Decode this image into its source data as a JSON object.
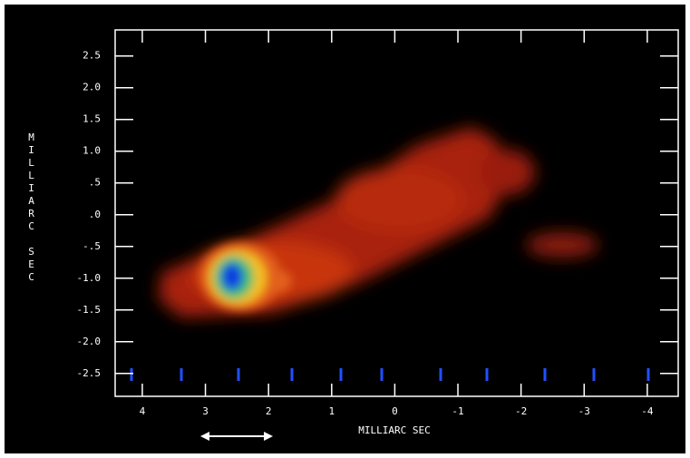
{
  "chart_data": {
    "type": "image",
    "x_label": "MILLIARC SEC",
    "y_label": "MILLIARC SEC",
    "xlim": [
      4.43,
      -4.49
    ],
    "ylim": [
      -2.86,
      2.91
    ],
    "xticks": [
      4,
      3,
      2,
      1,
      0,
      -1,
      -2,
      -3,
      -4
    ],
    "yticks": [
      {
        "value": 2.5,
        "label": "2.5"
      },
      {
        "value": 2,
        "label": "2.0"
      },
      {
        "value": 1.5,
        "label": "1.5"
      },
      {
        "value": 1,
        "label": "1.0"
      },
      {
        "value": 0.5,
        "label": ".5"
      },
      {
        "value": 0,
        "label": ".0"
      },
      {
        "value": -0.5,
        "label": "-.5"
      },
      {
        "value": -1,
        "label": "-1.0"
      },
      {
        "value": -1.5,
        "label": "-1.5"
      },
      {
        "value": -2,
        "label": "-2.0"
      },
      {
        "value": -2.5,
        "label": "-2.5"
      }
    ]
  }
}
